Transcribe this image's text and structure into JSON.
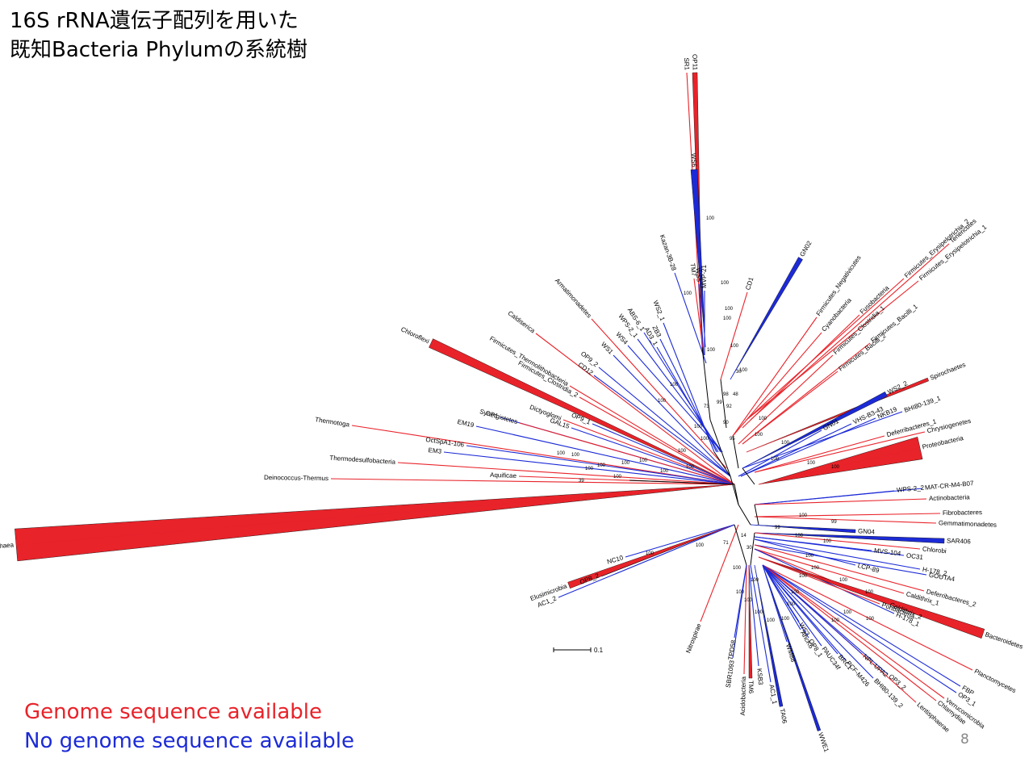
{
  "title": {
    "line1": "16S rRNA遺伝子配列を用いた",
    "line2": "既知Bacteria Phylumの系統樹"
  },
  "legend": {
    "available": "Genome sequence available",
    "unavailable": "No genome sequence available"
  },
  "colors": {
    "available": "#e8232a",
    "unavailable": "#1c2bd6",
    "internal": "#000000"
  },
  "page_number": "8",
  "scale_bar_label": "0.1",
  "tree": {
    "leaves": [
      {
        "name": "SR1",
        "genome": true
      },
      {
        "name": "OP11",
        "genome": true
      },
      {
        "name": "WS6",
        "genome": false
      },
      {
        "name": "Kazan-3B-28",
        "genome": false
      },
      {
        "name": "TM7",
        "genome": true
      },
      {
        "name": "WS5",
        "genome": false
      },
      {
        "name": "MVP-21",
        "genome": false
      },
      {
        "name": "GN02",
        "genome": false
      },
      {
        "name": "CD1",
        "genome": true
      },
      {
        "name": "Firmicutes_Negativicutes",
        "genome": true
      },
      {
        "name": "Cyanobacteria",
        "genome": true
      },
      {
        "name": "Fusobacteria",
        "genome": true
      },
      {
        "name": "Firmicutes_Erysipelotrichia_2",
        "genome": true
      },
      {
        "name": "Firmicutes_Erysipelotrichia_1",
        "genome": true
      },
      {
        "name": "Tenericutes",
        "genome": true
      },
      {
        "name": "Firmicutes_Clostridia_1",
        "genome": true
      },
      {
        "name": "Firmicutes_Bacilli_2",
        "genome": true
      },
      {
        "name": "Firmicutes_Bacilli_1",
        "genome": true
      },
      {
        "name": "Spirochaetes",
        "genome": true
      },
      {
        "name": "WS2_2",
        "genome": false
      },
      {
        "name": "BHI80-139_1",
        "genome": false
      },
      {
        "name": "NKB19",
        "genome": false
      },
      {
        "name": "VHS-B3-43",
        "genome": false
      },
      {
        "name": "GN01",
        "genome": false
      },
      {
        "name": "Chrysiogenetes",
        "genome": true
      },
      {
        "name": "Deferribacteres_1",
        "genome": true
      },
      {
        "name": "Proteobacteria",
        "genome": true
      },
      {
        "name": "WPS-2_2",
        "genome": false
      },
      {
        "name": "MAT-CR-M4-B07",
        "genome": false
      },
      {
        "name": "Actinobacteria",
        "genome": true
      },
      {
        "name": "Fibrobacteres",
        "genome": true
      },
      {
        "name": "Gemmatimonadetes",
        "genome": true
      },
      {
        "name": "GN04",
        "genome": false
      },
      {
        "name": "SAR406",
        "genome": false
      },
      {
        "name": "Chlorobi",
        "genome": true
      },
      {
        "name": "MVS-104",
        "genome": false
      },
      {
        "name": "OC31",
        "genome": false
      },
      {
        "name": "LCP-89",
        "genome": false
      },
      {
        "name": "H-178_2",
        "genome": false
      },
      {
        "name": "GOUTA4",
        "genome": false
      },
      {
        "name": "Deferribacteres_2",
        "genome": true
      },
      {
        "name": "Caldithrix_1",
        "genome": true
      },
      {
        "name": "Caldithrix_2",
        "genome": true
      },
      {
        "name": "H-178_1",
        "genome": false
      },
      {
        "name": "Poribacteria",
        "genome": true
      },
      {
        "name": "Bacteroidetes",
        "genome": true
      },
      {
        "name": "Planctomycetes",
        "genome": true
      },
      {
        "name": "FBP",
        "genome": false
      },
      {
        "name": "OP3_1",
        "genome": false
      },
      {
        "name": "Verrucomicrobia",
        "genome": true
      },
      {
        "name": "Chlamydiae",
        "genome": true
      },
      {
        "name": "Lentisphaerae",
        "genome": true
      },
      {
        "name": "OP3_2",
        "genome": false
      },
      {
        "name": "BHI80-139_2",
        "genome": false
      },
      {
        "name": "NPL-UPA2",
        "genome": false
      },
      {
        "name": "PCF-M426",
        "genome": false
      },
      {
        "name": "BRC1",
        "genome": false
      },
      {
        "name": "PAUC34f",
        "genome": false
      },
      {
        "name": "OP8_1",
        "genome": false
      },
      {
        "name": "AncK6",
        "genome": false
      },
      {
        "name": "WS3",
        "genome": false
      },
      {
        "name": "WM88",
        "genome": false
      },
      {
        "name": "WWE1",
        "genome": false
      },
      {
        "name": "TA06",
        "genome": false
      },
      {
        "name": "AC1_1",
        "genome": false
      },
      {
        "name": "KSB3",
        "genome": false
      },
      {
        "name": "TM6",
        "genome": true
      },
      {
        "name": "Acidobacteria",
        "genome": true
      },
      {
        "name": "SBR1093",
        "genome": false
      },
      {
        "name": "TPD58",
        "genome": false
      },
      {
        "name": "Nitrospirae",
        "genome": true
      },
      {
        "name": "NC10",
        "genome": false
      },
      {
        "name": "OP8_2",
        "genome": false
      },
      {
        "name": "Elusimicrobia",
        "genome": true
      },
      {
        "name": "AC1_2",
        "genome": false
      },
      {
        "name": "Archaea",
        "genome": true
      },
      {
        "name": "Deinococcus-Thermus",
        "genome": true
      },
      {
        "name": "Aquificae",
        "genome": true
      },
      {
        "name": "Thermodesulfobacteria",
        "genome": true
      },
      {
        "name": "EM3",
        "genome": false
      },
      {
        "name": "Thermotoga",
        "genome": true
      },
      {
        "name": "OctSpA1-106",
        "genome": false
      },
      {
        "name": "EM19",
        "genome": false
      },
      {
        "name": "OP1",
        "genome": false
      },
      {
        "name": "Synergistetes",
        "genome": true
      },
      {
        "name": "Chloroflexi",
        "genome": true
      },
      {
        "name": "Dictyoglomi",
        "genome": true
      },
      {
        "name": "GAL15",
        "genome": false
      },
      {
        "name": "OP9_1",
        "genome": false
      },
      {
        "name": "Firmicutes_Clostridia_2",
        "genome": true
      },
      {
        "name": "Caldiserica",
        "genome": true
      },
      {
        "name": "Firmicutes_Thermolithobacteria",
        "genome": true
      },
      {
        "name": "CD12",
        "genome": false
      },
      {
        "name": "OP9_2",
        "genome": false
      },
      {
        "name": "WS1",
        "genome": false
      },
      {
        "name": "Armatimonadetes",
        "genome": true
      },
      {
        "name": "WS4",
        "genome": false
      },
      {
        "name": "WPS-2_1",
        "genome": false
      },
      {
        "name": "ABS-6_1",
        "genome": false
      },
      {
        "name": "AD3_1",
        "genome": false
      },
      {
        "name": "ZB3",
        "genome": false
      },
      {
        "name": "WS2_1",
        "genome": false
      }
    ],
    "bootstrap": [
      "100",
      "100",
      "100",
      "100",
      "100",
      "98",
      "99",
      "92",
      "95",
      "90",
      "73",
      "48",
      "30",
      "100",
      "100",
      "100",
      "100",
      "100",
      "100",
      "100",
      "100",
      "100",
      "100",
      "100",
      "100",
      "100",
      "100",
      "100",
      "100",
      "100",
      "100",
      "100",
      "100",
      "100",
      "100",
      "100",
      "100",
      "99",
      "99",
      "100",
      "100",
      "100",
      "100",
      "100",
      "100",
      "100",
      "100",
      "100",
      "100",
      "100",
      "100",
      "100",
      "100",
      "100",
      "100",
      "100",
      "100",
      "100",
      "100",
      "100",
      "39",
      "71",
      "14",
      "30"
    ]
  }
}
